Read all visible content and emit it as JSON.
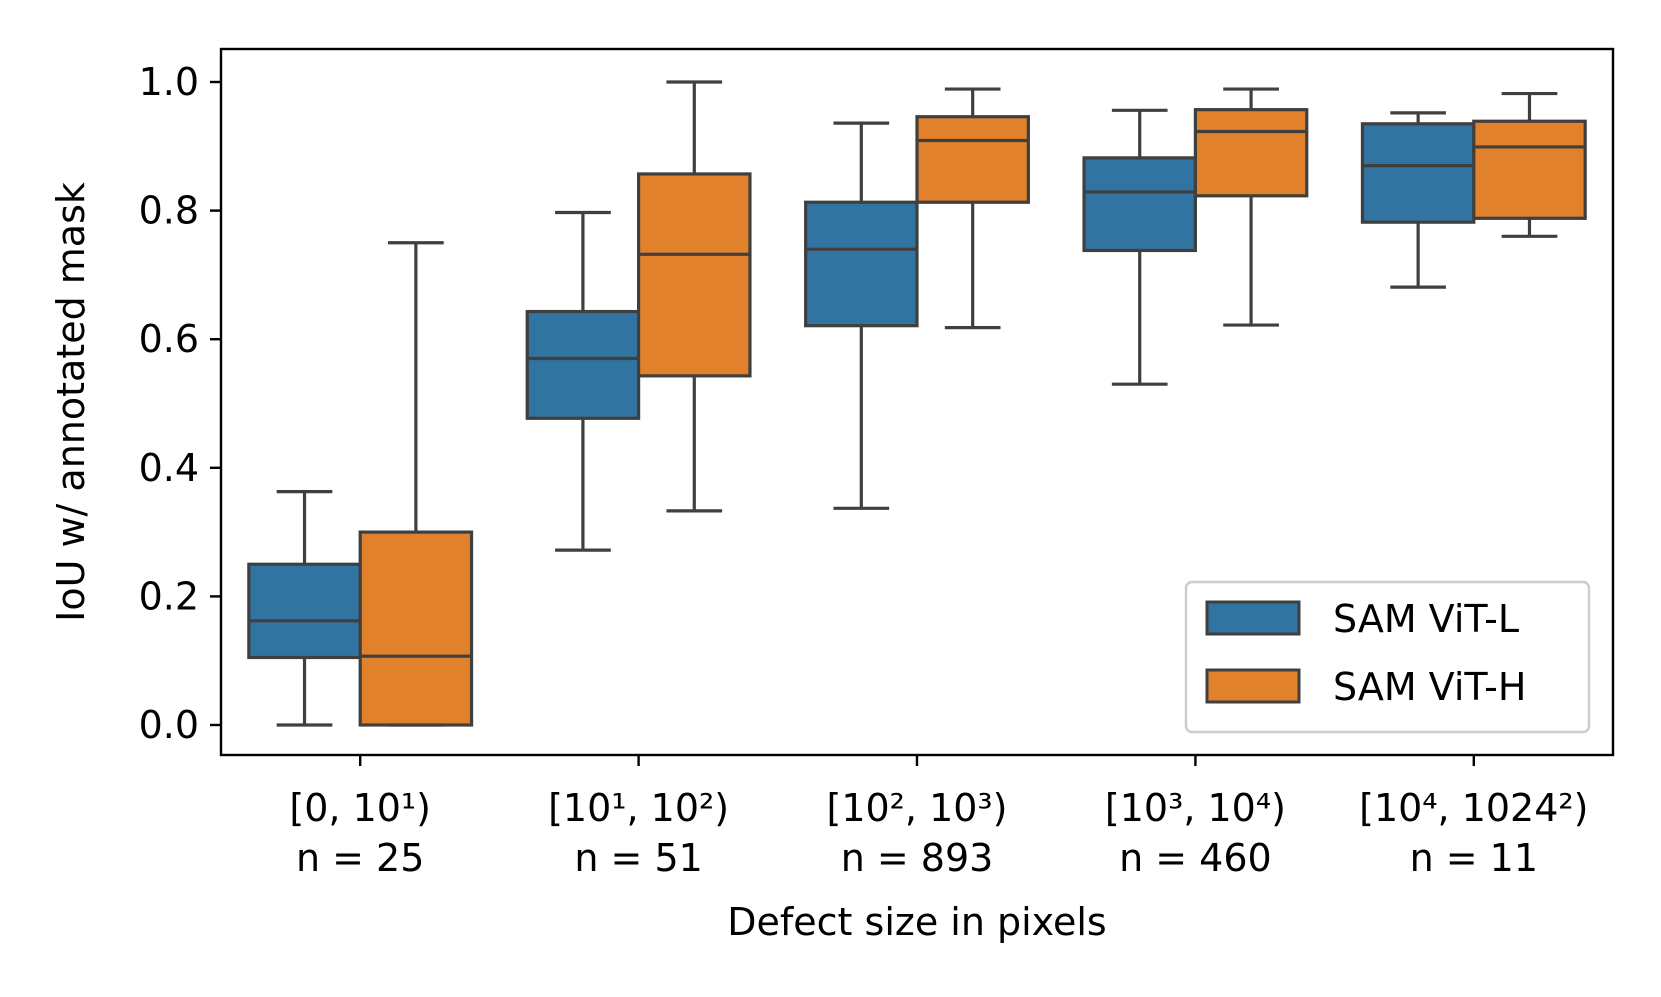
{
  "chart_data": {
    "type": "box",
    "xlabel": "Defect size in pixels",
    "ylabel": "IoU w/ annotated mask",
    "ylim": [
      -0.05,
      1.05
    ],
    "yticks": [
      0.0,
      0.2,
      0.4,
      0.6,
      0.8,
      1.0
    ],
    "ytick_labels": [
      "0.0",
      "0.2",
      "0.4",
      "0.6",
      "0.8",
      "1.0"
    ],
    "categories": [
      {
        "range": "[0, 10¹)",
        "n": "n = 25"
      },
      {
        "range": "[10¹, 10²)",
        "n": "n = 51"
      },
      {
        "range": "[10², 10³)",
        "n": "n = 893"
      },
      {
        "range": "[10³, 10⁴)",
        "n": "n = 460"
      },
      {
        "range": "[10⁴, 1024²)",
        "n": "n = 11"
      }
    ],
    "series": [
      {
        "name": "SAM ViT-L",
        "color": "#3274a1",
        "boxes": [
          {
            "whisker_low": 0.0,
            "q1": 0.105,
            "median": 0.162,
            "q3": 0.25,
            "whisker_high": 0.363
          },
          {
            "whisker_low": 0.272,
            "q1": 0.477,
            "median": 0.57,
            "q3": 0.643,
            "whisker_high": 0.797
          },
          {
            "whisker_low": 0.337,
            "q1": 0.621,
            "median": 0.74,
            "q3": 0.813,
            "whisker_high": 0.936
          },
          {
            "whisker_low": 0.53,
            "q1": 0.738,
            "median": 0.829,
            "q3": 0.882,
            "whisker_high": 0.956
          },
          {
            "whisker_low": 0.681,
            "q1": 0.782,
            "median": 0.87,
            "q3": 0.935,
            "whisker_high": 0.952
          }
        ]
      },
      {
        "name": "SAM ViT-H",
        "color": "#e1812c",
        "boxes": [
          {
            "whisker_low": 0.0,
            "q1": 0.0,
            "median": 0.107,
            "q3": 0.3,
            "whisker_high": 0.75
          },
          {
            "whisker_low": 0.333,
            "q1": 0.543,
            "median": 0.732,
            "q3": 0.857,
            "whisker_high": 1.0
          },
          {
            "whisker_low": 0.618,
            "q1": 0.813,
            "median": 0.909,
            "q3": 0.946,
            "whisker_high": 0.989
          },
          {
            "whisker_low": 0.622,
            "q1": 0.823,
            "median": 0.923,
            "q3": 0.957,
            "whisker_high": 0.989
          },
          {
            "whisker_low": 0.76,
            "q1": 0.788,
            "median": 0.899,
            "q3": 0.939,
            "whisker_high": 0.982
          }
        ]
      }
    ],
    "legend": {
      "position": "lower-right",
      "entries": [
        "SAM ViT-L",
        "SAM ViT-H"
      ]
    }
  }
}
